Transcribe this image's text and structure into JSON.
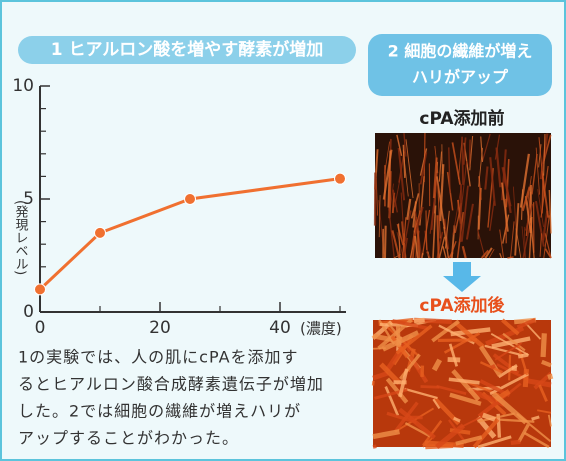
{
  "chart_data": {
    "type": "line",
    "title": "1 ヒアルロン酸を増やす酵素が増加",
    "y_label": "(発現レベル)",
    "x_label": "(濃度)",
    "x": [
      0,
      10,
      25,
      50
    ],
    "values": [
      1,
      3.5,
      5,
      5.9
    ],
    "color": "#f07030",
    "xlim": [
      0,
      51
    ],
    "xticks": [
      0,
      20,
      40
    ],
    "xminor_ticks": [
      10,
      30,
      50
    ],
    "ylim": [
      0,
      10
    ],
    "yticks": [
      0,
      5,
      10
    ],
    "yminor_ticks": [
      1,
      2,
      3,
      4,
      6,
      7,
      8,
      9
    ]
  },
  "panel2": {
    "title_lines": [
      "2 細胞の繊維が増え",
      "ハリがアップ"
    ],
    "before_label": "cPA添加前",
    "after_label": "cPA添加後"
  },
  "caption": [
    "1の実験では、人の肌にcPAを添加す",
    "るとヒアルロン酸合成酵素遺伝子が増加",
    "した。2では細胞の繊維が増えハリが",
    "アップすることがわかった。"
  ]
}
